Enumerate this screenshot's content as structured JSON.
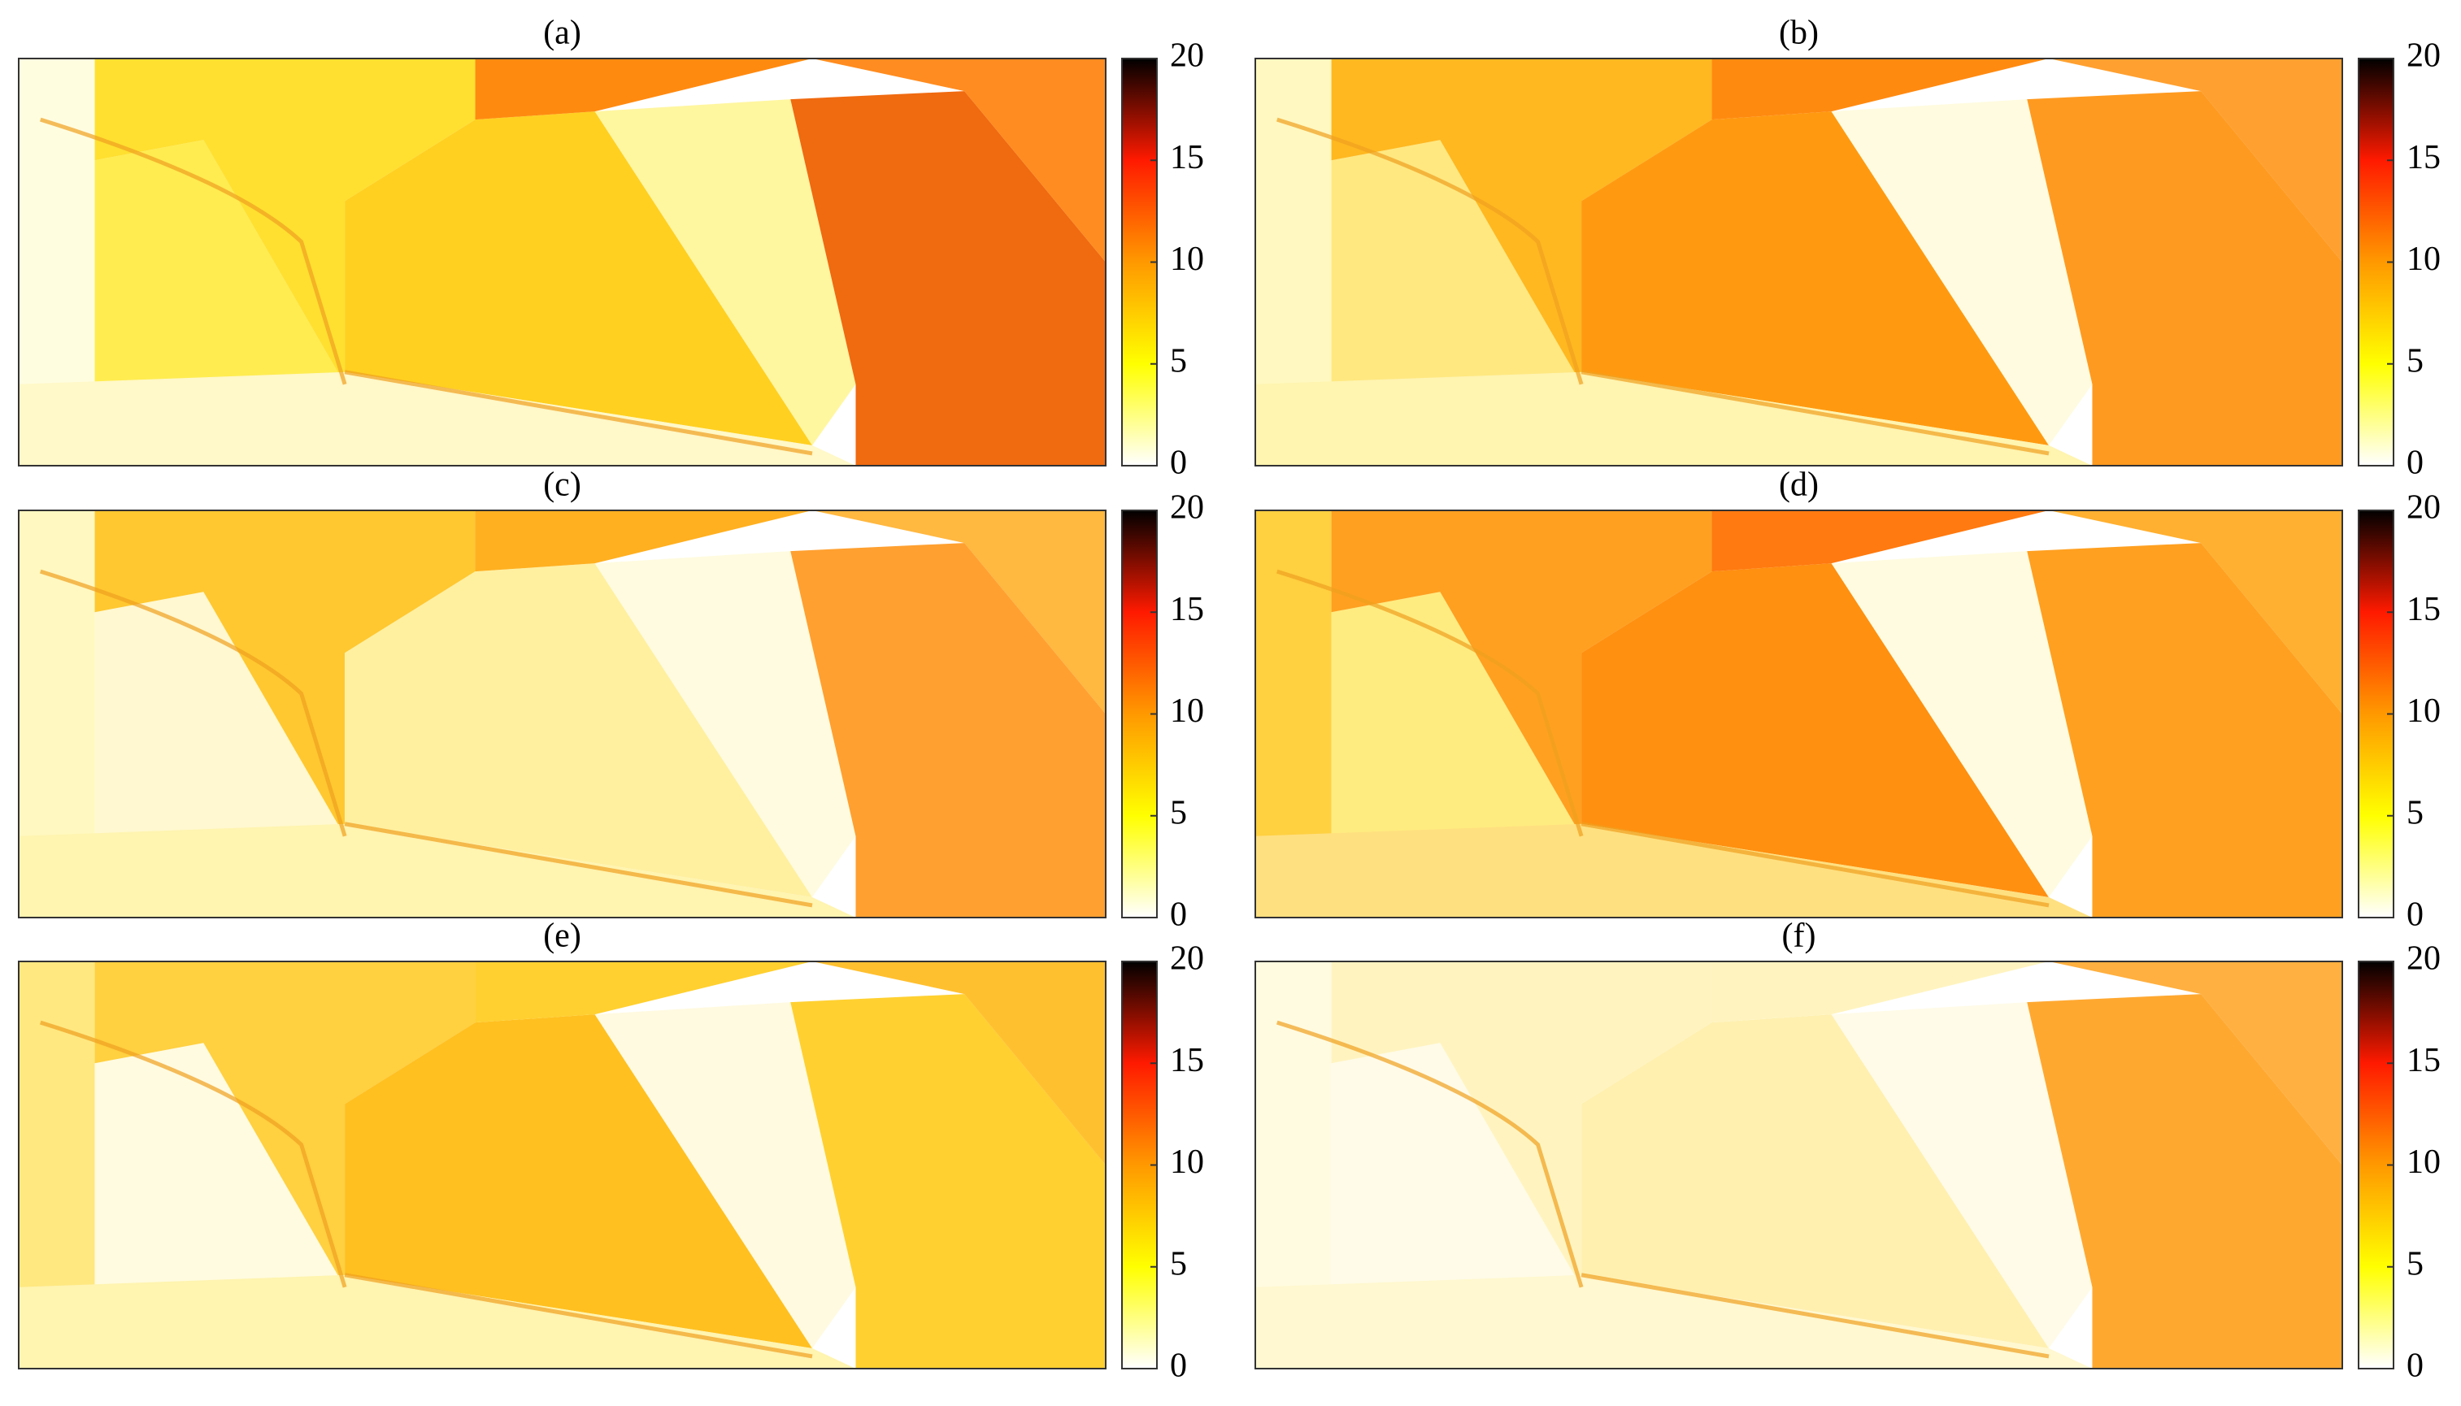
{
  "chart_data": [
    {
      "type": "heatmap",
      "title": "(a)",
      "clim": [
        0,
        20
      ],
      "cticks": [
        0,
        5,
        10,
        15,
        20
      ],
      "colormap": [
        "#ffffff",
        "#ffff00",
        "#ff9900",
        "#ff1a00",
        "#000000"
      ]
    },
    {
      "type": "heatmap",
      "title": "(b)",
      "clim": [
        0,
        20
      ],
      "cticks": [
        0,
        5,
        10,
        15,
        20
      ],
      "colormap": [
        "#ffffff",
        "#ffff00",
        "#ff9900",
        "#ff1a00",
        "#000000"
      ]
    },
    {
      "type": "heatmap",
      "title": "(c)",
      "clim": [
        0,
        20
      ],
      "cticks": [
        0,
        5,
        10,
        15,
        20
      ],
      "colormap": [
        "#ffffff",
        "#ffff00",
        "#ff9900",
        "#ff1a00",
        "#000000"
      ]
    },
    {
      "type": "heatmap",
      "title": "(d)",
      "clim": [
        0,
        20
      ],
      "cticks": [
        0,
        5,
        10,
        15,
        20
      ],
      "colormap": [
        "#ffffff",
        "#ffff00",
        "#ff9900",
        "#ff1a00",
        "#000000"
      ]
    },
    {
      "type": "heatmap",
      "title": "(e)",
      "clim": [
        0,
        20
      ],
      "cticks": [
        0,
        5,
        10,
        15,
        20
      ],
      "colormap": [
        "#ffffff",
        "#ffff00",
        "#ff9900",
        "#ff1a00",
        "#000000"
      ]
    },
    {
      "type": "heatmap",
      "title": "(f)",
      "clim": [
        0,
        20
      ],
      "cticks": [
        0,
        5,
        10,
        15,
        20
      ],
      "colormap": [
        "#ffffff",
        "#ffff00",
        "#ff9900",
        "#ff1a00",
        "#000000"
      ]
    }
  ]
}
